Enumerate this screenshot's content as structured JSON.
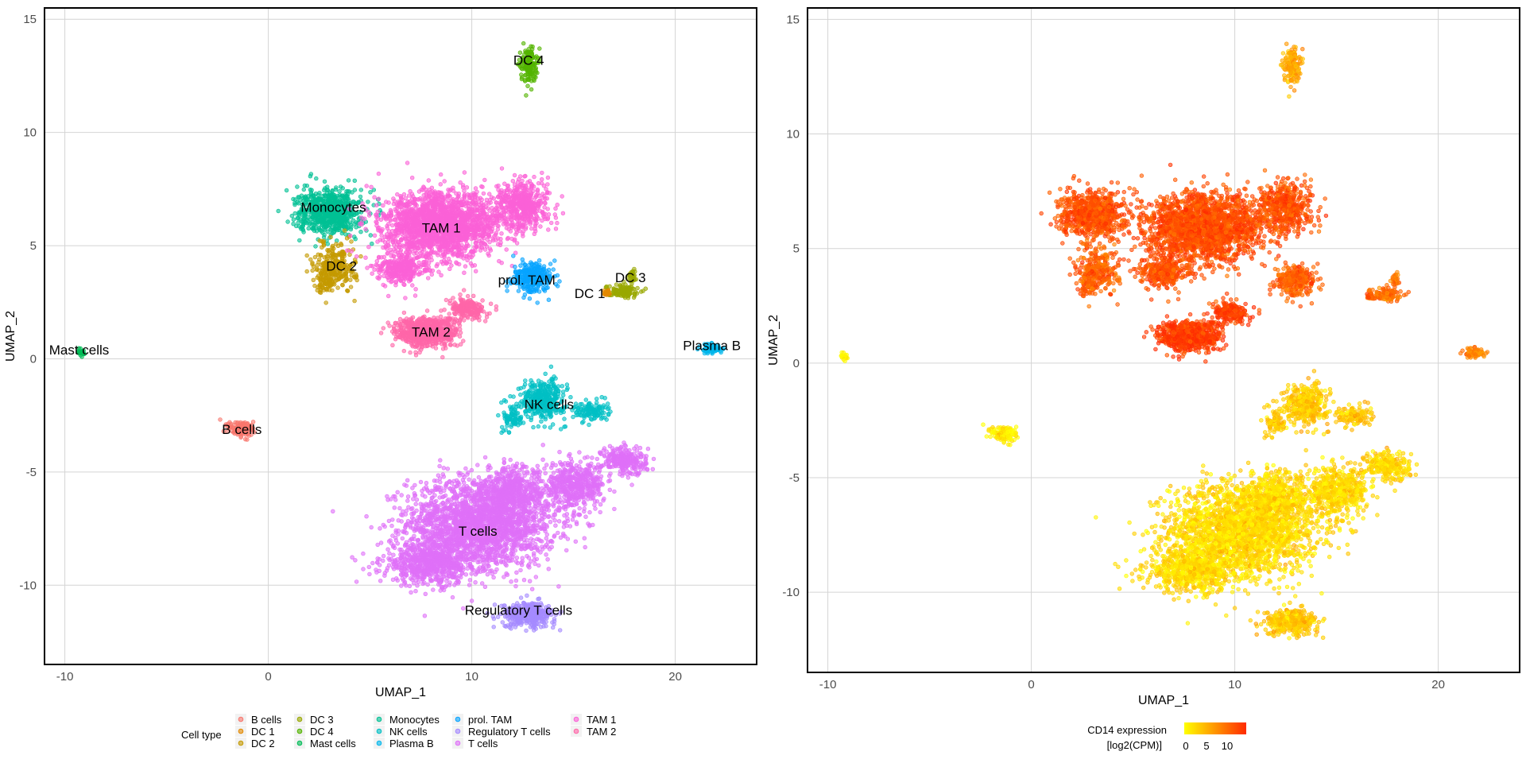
{
  "chart_data": [
    {
      "type": "scatter",
      "panel": "left",
      "xlabel": "UMAP_1",
      "ylabel": "UMAP_2",
      "xlim": [
        -11,
        24
      ],
      "ylim": [
        -13.5,
        15.5
      ],
      "xticks": [
        -10,
        0,
        10,
        20
      ],
      "yticks": [
        -10,
        -5,
        0,
        5,
        10,
        15
      ],
      "grid": true,
      "legend": {
        "title": "Cell type",
        "placement": "bottom",
        "entries": [
          {
            "name": "B cells",
            "color": "#F8766D"
          },
          {
            "name": "DC 1",
            "color": "#E38900"
          },
          {
            "name": "DC 2",
            "color": "#C49A00"
          },
          {
            "name": "DC 3",
            "color": "#99A800"
          },
          {
            "name": "DC 4",
            "color": "#53B400"
          },
          {
            "name": "Mast cells",
            "color": "#00BC56"
          },
          {
            "name": "Monocytes",
            "color": "#00C094"
          },
          {
            "name": "NK cells",
            "color": "#00BFC4"
          },
          {
            "name": "Plasma B",
            "color": "#00B6EB"
          },
          {
            "name": "prol. TAM",
            "color": "#06A4FF"
          },
          {
            "name": "Regulatory T cells",
            "color": "#A58AFF"
          },
          {
            "name": "T cells",
            "color": "#DF70F8"
          },
          {
            "name": "TAM 1",
            "color": "#FB61D7"
          },
          {
            "name": "TAM 2",
            "color": "#FF66A8"
          }
        ]
      },
      "clusters": [
        {
          "name": "B cells",
          "label": "B cells",
          "x": -1.3,
          "y": -3.1
        },
        {
          "name": "DC 1",
          "label": "DC 1",
          "x": 15.8,
          "y": 2.9
        },
        {
          "name": "DC 2",
          "label": "DC 2",
          "x": 3.6,
          "y": 4.1
        },
        {
          "name": "DC 3",
          "label": "DC 3",
          "x": 17.8,
          "y": 3.6
        },
        {
          "name": "DC 4",
          "label": "DC 4",
          "x": 12.8,
          "y": 13.2
        },
        {
          "name": "Mast cells",
          "label": "Mast cells",
          "x": -9.3,
          "y": 0.4
        },
        {
          "name": "Monocytes",
          "label": "Monocytes",
          "x": 3.2,
          "y": 6.7
        },
        {
          "name": "NK cells",
          "label": "NK cells",
          "x": 13.8,
          "y": -2.0
        },
        {
          "name": "Plasma B",
          "label": "Plasma B",
          "x": 21.8,
          "y": 0.6
        },
        {
          "name": "prol. TAM",
          "label": "prol. TAM",
          "x": 12.7,
          "y": 3.5
        },
        {
          "name": "Regulatory T cells",
          "label": "Regulatory T cells",
          "x": 12.3,
          "y": -11.1
        },
        {
          "name": "T cells",
          "label": "T cells",
          "x": 10.3,
          "y": -7.6
        },
        {
          "name": "TAM 1",
          "label": "TAM 1",
          "x": 8.5,
          "y": 5.8
        },
        {
          "name": "TAM 2",
          "label": "TAM 2",
          "x": 8.0,
          "y": 1.2
        }
      ]
    },
    {
      "type": "scatter",
      "panel": "right",
      "xlabel": "UMAP_1",
      "ylabel": "UMAP_2",
      "xlim": [
        -11,
        24
      ],
      "ylim": [
        -13.5,
        15.5
      ],
      "xticks": [
        -10,
        0,
        10,
        20
      ],
      "yticks": [
        -10,
        -5,
        0,
        5,
        10,
        15
      ],
      "grid": true,
      "color_scale": {
        "title_line1": "CD14 expression",
        "title_line2": "[log2(CPM)]",
        "ticks": [
          0,
          5,
          10
        ],
        "low_color": "#FFFF00",
        "high_color": "#FF2A00",
        "placement": "bottom"
      },
      "expression_by_cluster": {
        "B cells": 1,
        "DC 1": 9,
        "DC 2": 9,
        "DC 3": 8,
        "DC 4": 5,
        "Mast cells": 1,
        "Monocytes": 10,
        "NK cells": 3,
        "Plasma B": 7,
        "prol. TAM": 9,
        "Regulatory T cells": 3,
        "T cells": 2,
        "TAM 1": 10,
        "TAM 2": 11
      }
    }
  ]
}
